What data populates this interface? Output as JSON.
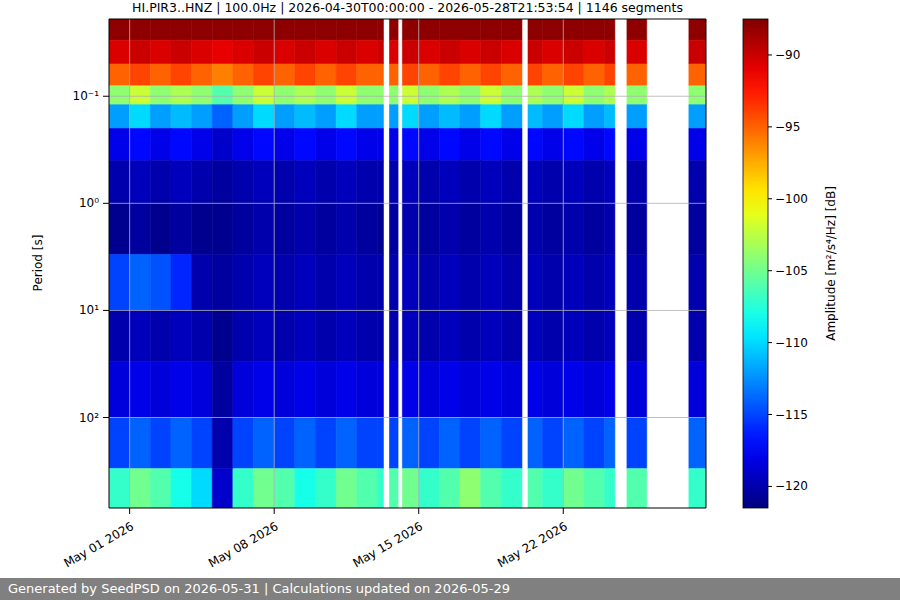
{
  "chart_data": {
    "type": "heatmap",
    "title": "HI.PIR3..HNZ | 100.0Hz | 2026-04-30T00:00:00 - 2026-05-28T21:53:54 | 1146 segments",
    "y_label": "Period [s]",
    "log": "y",
    "grid": true,
    "xlim": [
      "2026-04-30T00:00:00",
      "2026-05-28T21:53:54"
    ],
    "xticks": [
      {
        "value": "2026-05-01T00:00:00",
        "label": "May 01 2026"
      },
      {
        "value": "2026-05-08T00:00:00",
        "label": "May 08 2026"
      },
      {
        "value": "2026-05-15T00:00:00",
        "label": "May 15 2026"
      },
      {
        "value": "2026-05-22T00:00:00",
        "label": "May 22 2026"
      }
    ],
    "ylim": [
      0.019,
      700
    ],
    "yticks": [
      {
        "value": 0.1,
        "label": "10⁻¹"
      },
      {
        "value": 1,
        "label": "10⁰"
      },
      {
        "value": 10,
        "label": "10¹"
      },
      {
        "value": 100,
        "label": "10²"
      }
    ],
    "x_edges": [
      "2026-04-30T00:00:00",
      "2026-05-01T00:00:00",
      "2026-05-02T00:00:00",
      "2026-05-03T00:00:00",
      "2026-05-04T00:00:00",
      "2026-05-05T00:00:00",
      "2026-05-06T00:00:00",
      "2026-05-07T00:00:00",
      "2026-05-08T00:00:00",
      "2026-05-09T00:00:00",
      "2026-05-10T00:00:00",
      "2026-05-11T00:00:00",
      "2026-05-12T00:00:00",
      "2026-05-13T00:00:00",
      "2026-05-13T07:00:00",
      "2026-05-13T14:00:00",
      "2026-05-14T00:00:00",
      "2026-05-14T05:00:00",
      "2026-05-15T00:00:00",
      "2026-05-16T00:00:00",
      "2026-05-17T00:00:00",
      "2026-05-18T00:00:00",
      "2026-05-19T00:00:00",
      "2026-05-20T00:00:00",
      "2026-05-20T07:00:00",
      "2026-05-21T00:00:00",
      "2026-05-22T00:00:00",
      "2026-05-23T00:00:00",
      "2026-05-24T00:00:00",
      "2026-05-24T12:00:00",
      "2026-05-25T02:00:00",
      "2026-05-26T01:00:00",
      "2026-05-28T02:00:00",
      "2026-05-28T21:53:54"
    ],
    "y_edges": [
      0.019,
      0.03,
      0.05,
      0.08,
      0.12,
      0.2,
      0.4,
      1,
      3,
      10,
      30,
      100,
      300,
      700
    ],
    "cells": [
      [
        -88,
        -88,
        -88,
        -88,
        -88,
        -88,
        -88,
        -88,
        -88,
        -88,
        -88,
        -88,
        -88,
        -88,
        null,
        -88,
        null,
        -88,
        -88,
        -88,
        -88,
        -88,
        -88,
        null,
        -88,
        -88,
        -88,
        -88,
        -88,
        null,
        -88,
        null,
        -88
      ],
      [
        -90.5,
        -90,
        -90.5,
        -90,
        -90.5,
        -91,
        -90.5,
        -90,
        -90.5,
        -90,
        -90.5,
        -90,
        -90.5,
        -90,
        null,
        -90.5,
        null,
        -90,
        -90.5,
        -90,
        -90.5,
        -90,
        -90.5,
        null,
        -90,
        -90.5,
        -90,
        -90.5,
        -90,
        null,
        -90.5,
        null,
        -90
      ],
      [
        -95,
        -94,
        -95,
        -94,
        -95,
        -96,
        -95,
        -94,
        -95,
        -94,
        -95,
        -94,
        -95,
        -95,
        null,
        -95,
        null,
        -94,
        -95,
        -94,
        -95,
        -94,
        -95,
        null,
        -94,
        -95,
        -94,
        -95,
        -94,
        null,
        -95,
        null,
        -95
      ],
      [
        -104,
        -102,
        -104,
        -103,
        -104,
        -106,
        -104,
        -102,
        -104,
        -103,
        -104,
        -102,
        -104,
        -104,
        null,
        -104,
        null,
        -102,
        -104,
        -103,
        -104,
        -102,
        -104,
        null,
        -103,
        -104,
        -102,
        -104,
        -103,
        null,
        -104,
        null,
        -104
      ],
      [
        -112,
        -110,
        -112,
        -111,
        -112,
        -114,
        -112,
        -110,
        -112,
        -111,
        -112,
        -110,
        -112,
        -112,
        null,
        -112,
        null,
        -110,
        -112,
        -111,
        -112,
        -110,
        -112,
        null,
        -111,
        -112,
        -110,
        -112,
        -111,
        null,
        -112,
        null,
        -112
      ],
      [
        -118,
        -117,
        -118,
        -117,
        -118,
        -119,
        -118,
        -117,
        -118,
        -117,
        -118,
        -117,
        -118,
        -118,
        null,
        -118,
        null,
        -117,
        -118,
        -117,
        -118,
        -117,
        -118,
        null,
        -117,
        -118,
        -117,
        -118,
        -117,
        null,
        -118,
        null,
        -118
      ],
      [
        -120,
        -119.5,
        -120,
        -119.5,
        -120,
        -120.5,
        -120,
        -119.5,
        -120,
        -119.5,
        -120,
        -119.5,
        -120,
        -120,
        null,
        -120,
        null,
        -119.5,
        -120,
        -119.5,
        -120,
        -119.5,
        -120,
        null,
        -119.5,
        -120,
        -119.5,
        -120,
        -119.5,
        null,
        -120,
        null,
        -120
      ],
      [
        -121,
        -120.5,
        -121,
        -120.5,
        -121,
        -121,
        -120.5,
        -120,
        -120.5,
        -120,
        -120.5,
        -120,
        -120.5,
        -121,
        null,
        -120.5,
        null,
        -120,
        -120.5,
        -120,
        -120.5,
        -120,
        -120.5,
        null,
        -120,
        -120.5,
        -120,
        -120.5,
        -120,
        null,
        -120.5,
        null,
        -120.5
      ],
      [
        -115,
        -114,
        -114.5,
        -116,
        -120,
        -120.5,
        -120,
        -119.5,
        -120,
        -119.5,
        -120,
        -119.5,
        -120,
        -120,
        null,
        -120,
        null,
        -119.5,
        -120,
        -119.5,
        -120,
        -119.5,
        -120,
        null,
        -119.5,
        -120,
        -119.5,
        -120,
        -119.5,
        null,
        -120,
        null,
        -120
      ],
      [
        -120,
        -119.5,
        -120,
        -119.5,
        -120,
        -121,
        -120,
        -119.5,
        -120,
        -119.5,
        -120,
        -119.5,
        -120,
        -120,
        null,
        -120,
        null,
        -119.5,
        -120,
        -119.5,
        -120,
        -119.5,
        -120,
        null,
        -119.5,
        -120,
        -119.5,
        -120,
        -119.5,
        null,
        -120,
        null,
        -120
      ],
      [
        -118.5,
        -118,
        -118.5,
        -118,
        -118.5,
        -120.5,
        -118.5,
        -118,
        -118.5,
        -118,
        -118.5,
        -118,
        -118.5,
        -118.5,
        null,
        -118.5,
        null,
        -118,
        -118.5,
        -118,
        -118.5,
        -118,
        -118.5,
        null,
        -118,
        -118.5,
        -118,
        -118.5,
        -118,
        null,
        -118.5,
        null,
        -118.5
      ],
      [
        -115,
        -114,
        -115,
        -114,
        -115,
        -120,
        -115,
        -114,
        -115,
        -114,
        -115,
        -114,
        -115,
        -115,
        null,
        -115,
        null,
        -114,
        -115,
        -114,
        -115,
        -114,
        -115,
        null,
        -114,
        -115,
        -114,
        -115,
        -114,
        null,
        -115,
        null,
        -114
      ],
      [
        -107,
        -105,
        -106,
        -108,
        -110,
        -119,
        -107,
        -105,
        -106,
        -108,
        -107,
        -105,
        -106,
        -107,
        null,
        -106,
        null,
        -105,
        -107,
        -106,
        -104,
        -106,
        -107,
        null,
        -106,
        -107,
        -105,
        -106,
        -107,
        null,
        -106,
        null,
        -107
      ]
    ],
    "colorbar": {
      "label": "Amplitude [m²/s⁴/Hz] [dB]",
      "range": [
        -121.5,
        -87.5
      ],
      "ticks": [
        -90,
        -95,
        -100,
        -105,
        -110,
        -115,
        -120
      ]
    }
  },
  "footer": "Generated by SeedPSD on 2026-05-31 | Calculations updated on 2026-05-29"
}
